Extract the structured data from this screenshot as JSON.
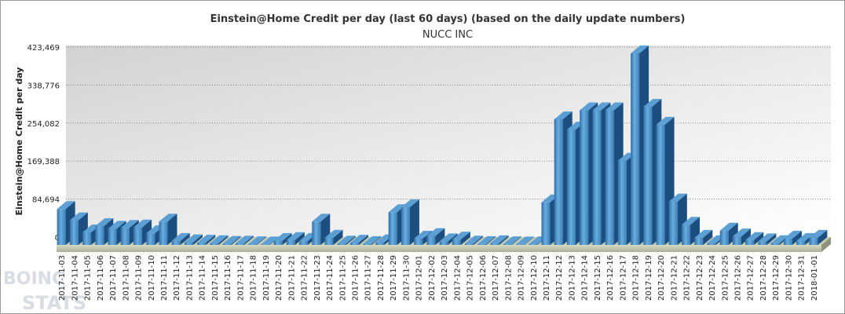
{
  "watermark": {
    "line1": "BOINC",
    "line2": "STATS"
  },
  "chart_data": {
    "type": "bar",
    "title": "Einstein@Home Credit per day (last 60 days) (based on the daily update numbers)",
    "subtitle": "NUCC INC",
    "ylabel": "Einstein@Home Credit per day",
    "xlabel": "",
    "ylim": [
      0,
      423469
    ],
    "yticks": [
      "0",
      "84,694",
      "169,388",
      "254,082",
      "338,776",
      "423,469"
    ],
    "ytick_values": [
      0,
      84694,
      169388,
      254082,
      338776,
      423469
    ],
    "grid": true,
    "legend": "none",
    "bar_color": "#3f86c0",
    "categories": [
      "2017-11-03",
      "2017-11-04",
      "2017-11-05",
      "2017-11-06",
      "2017-11-07",
      "2017-11-08",
      "2017-11-09",
      "2017-11-10",
      "2017-11-11",
      "2017-11-12",
      "2017-11-13",
      "2017-11-14",
      "2017-11-15",
      "2017-11-16",
      "2017-11-17",
      "2017-11-18",
      "2017-11-19",
      "2017-11-20",
      "2017-11-21",
      "2017-11-22",
      "2017-11-23",
      "2017-11-24",
      "2017-11-25",
      "2017-11-26",
      "2017-11-27",
      "2017-11-28",
      "2017-11-29",
      "2017-11-30",
      "2017-12-01",
      "2017-12-02",
      "2017-12-03",
      "2017-12-04",
      "2017-12-05",
      "2017-12-06",
      "2017-12-07",
      "2017-12-08",
      "2017-12-09",
      "2017-12-10",
      "2017-12-11",
      "2017-12-12",
      "2017-12-13",
      "2017-12-14",
      "2017-12-15",
      "2017-12-16",
      "2017-12-17",
      "2017-12-18",
      "2017-12-19",
      "2017-12-20",
      "2017-12-21",
      "2017-12-22",
      "2017-12-23",
      "2017-12-24",
      "2017-12-25",
      "2017-12-26",
      "2017-12-27",
      "2017-12-28",
      "2017-12-29",
      "2017-12-30",
      "2017-12-31",
      "2018-01-01"
    ],
    "values": [
      80000,
      55000,
      28000,
      42000,
      36000,
      38000,
      39000,
      26000,
      52000,
      9000,
      6000,
      5000,
      4000,
      2500,
      3000,
      1500,
      1000,
      9000,
      11000,
      9000,
      52000,
      16000,
      3000,
      5000,
      2000,
      6000,
      73000,
      84000,
      14000,
      20000,
      8000,
      12000,
      3000,
      2000,
      4000,
      1500,
      1000,
      1500,
      95000,
      280000,
      257000,
      300000,
      300000,
      300000,
      188000,
      427000,
      308000,
      268000,
      97000,
      45000,
      16000,
      4000,
      32000,
      19000,
      11000,
      8000,
      4000,
      14000,
      9000,
      16000
    ]
  }
}
